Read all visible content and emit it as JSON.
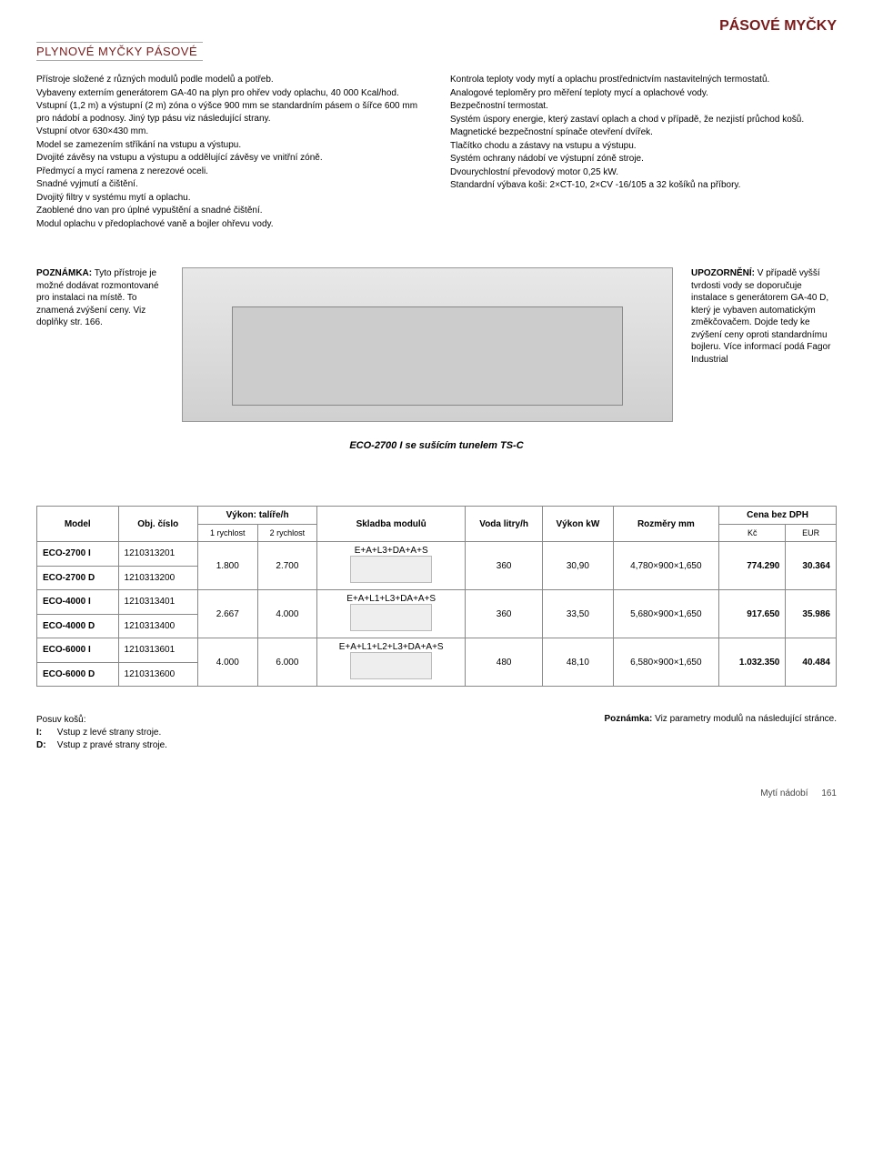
{
  "header": {
    "page_title": "PÁSOVÉ MYČKY",
    "section_title": "PLYNOVÉ MYČKY PÁSOVÉ"
  },
  "intro": {
    "left_lines": [
      "Přístroje složené z různých modulů podle modelů a potřeb.",
      "Vybaveny externím generátorem GA-40 na plyn pro ohřev vody oplachu, 40 000 Kcal/hod.",
      "Vstupní (1,2 m) a výstupní (2 m) zóna o výšce 900 mm se standardním pásem o šířce 600 mm pro nádobí a podnosy. Jiný typ pásu viz následující strany.",
      "Vstupní otvor 630×430 mm.",
      "Model se zamezením stříkání na vstupu a výstupu.",
      "Dvojité závěsy na vstupu a výstupu a oddělující závěsy ve vnitřní zóně.",
      "Předmycí a mycí ramena z nerezové oceli.",
      "Snadné vyjmutí a čištění.",
      "Dvojitý filtry v systému mytí a oplachu.",
      "Zaoblené dno van pro úplné vypuštění a snadné čištění.",
      "Modul oplachu v předoplachové vaně a bojler ohřevu vody."
    ],
    "right_lines": [
      "Kontrola teploty vody mytí a oplachu prostřednictvím nastavitelných termostatů.",
      "Analogové teploměry pro měření teploty mycí a oplachové vody.",
      "Bezpečnostní termostat.",
      "Systém úspory energie, který zastaví oplach a chod v případě, že nezjistí průchod košů.",
      "Magnetické bezpečnostní spínače otevření dvířek.",
      "Tlačítko chodu a zástavy na vstupu a výstupu.",
      "Systém ochrany nádobí ve výstupní zóně stroje.",
      "Dvourychlostní převodový motor 0,25 kW.",
      "Standardní výbava koši: 2×CT-10, 2×CV -16/105 a 32 košíků na příbory."
    ]
  },
  "midnotes": {
    "left_title": "POZNÁMKA:",
    "left_body": "Tyto přístroje je možné dodávat rozmontované pro instalaci na místě. To znamená zvýšení ceny. Viz doplňky str. 166.",
    "right_title": "UPOZORNĚNÍ:",
    "right_body": "V případě vyšší tvrdosti vody se doporučuje instalace s generátorem GA-40 D, který je vybaven automatickým změkčovačem. Dojde tedy ke zvýšení ceny oproti standardnímu bojleru. Více informací podá Fagor Industrial"
  },
  "figure_caption": "ECO-2700 I se sušícím tunelem TS-C",
  "spec_table": {
    "header": {
      "model": "Model",
      "obj": "Obj. číslo",
      "vykon": "Výkon: talíře/h",
      "speed1": "1 rychlost",
      "speed2": "2 rychlost",
      "skladba": "Skladba modulů",
      "voda": "Voda litry/h",
      "kw": "Výkon kW",
      "rozmer": "Rozměry mm",
      "cena": "Cena bez DPH",
      "kc": "Kč",
      "eur": "EUR"
    },
    "groups": [
      {
        "rows": [
          {
            "model": "ECO-2700 I",
            "obj": "1210313201"
          },
          {
            "model": "ECO-2700 D",
            "obj": "1210313200"
          }
        ],
        "speed1": "1.800",
        "speed2": "2.700",
        "skladba": "E+A+L3+DA+A+S",
        "voda": "360",
        "kw": "30,90",
        "rozmer": "4,780×900×1,650",
        "kc": "774.290",
        "eur": "30.364"
      },
      {
        "rows": [
          {
            "model": "ECO-4000 I",
            "obj": "1210313401"
          },
          {
            "model": "ECO-4000 D",
            "obj": "1210313400"
          }
        ],
        "speed1": "2.667",
        "speed2": "4.000",
        "skladba": "E+A+L1+L3+DA+A+S",
        "voda": "360",
        "kw": "33,50",
        "rozmer": "5,680×900×1,650",
        "kc": "917.650",
        "eur": "35.986"
      },
      {
        "rows": [
          {
            "model": "ECO-6000 I",
            "obj": "1210313601"
          },
          {
            "model": "ECO-6000 D",
            "obj": "1210313600"
          }
        ],
        "speed1": "4.000",
        "speed2": "6.000",
        "skladba": "E+A+L1+L2+L3+DA+A+S",
        "voda": "480",
        "kw": "48,10",
        "rozmer": "6,580×900×1,650",
        "kc": "1.032.350",
        "eur": "40.484"
      }
    ]
  },
  "bottom": {
    "left_title": "Posuv košů:",
    "left_i_label": "I:",
    "left_i_text": "Vstup z levé strany stroje.",
    "left_d_label": "D:",
    "left_d_text": "Vstup z pravé strany stroje.",
    "right_label": "Poznámka:",
    "right_text": "Viz parametry modulů na následující stránce."
  },
  "footer": {
    "section": "Mytí nádobí",
    "page": "161"
  },
  "colors": {
    "accent": "#7a1a1a",
    "border": "#888888",
    "bg": "#ffffff"
  }
}
